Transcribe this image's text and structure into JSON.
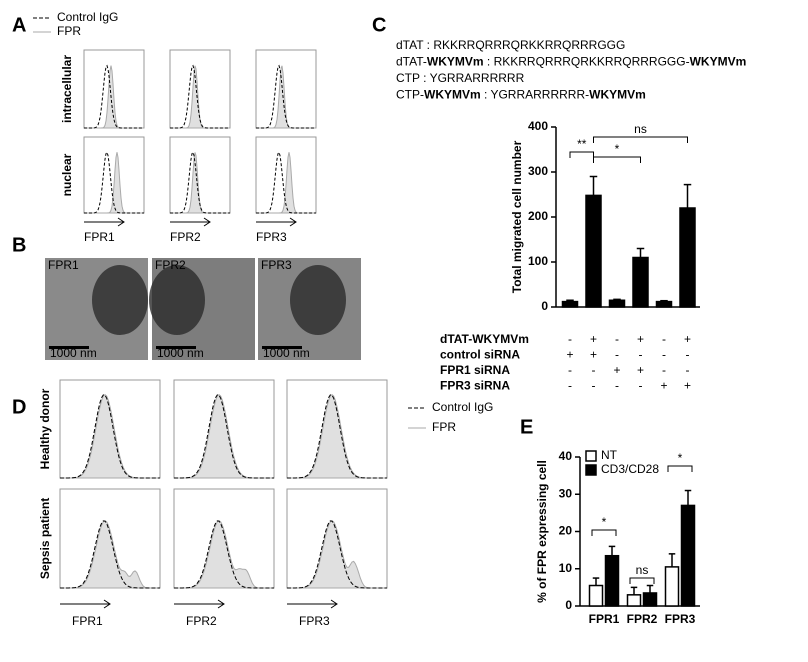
{
  "panels": {
    "a": {
      "label": "A",
      "legend": [
        "Control IgG",
        "FPR"
      ],
      "rows": [
        "intracellular",
        "nuclear"
      ],
      "columns": [
        "FPR1",
        "FPR2",
        "FPR3"
      ]
    },
    "b": {
      "label": "B",
      "images": [
        "FPR1",
        "FPR2",
        "FPR3"
      ],
      "scale_bar": "1000 nm"
    },
    "c": {
      "label": "C",
      "sequences": [
        [
          {
            "text": "dTAT : RKKRRQRRRQRKKRRQRRRGGG",
            "bold": false
          }
        ],
        [
          {
            "text": "dTAT-",
            "bold": false
          },
          {
            "text": "WKYMVm",
            "bold": true
          },
          {
            "text": " : RKKRRQRRRQRKKRRQRRRGGG-",
            "bold": false
          },
          {
            "text": "WKYMVm",
            "bold": true
          }
        ],
        [
          {
            "text": "CTP : YGRRARRRRRR",
            "bold": false
          }
        ],
        [
          {
            "text": "CTP-",
            "bold": false
          },
          {
            "text": "WKYMVm",
            "bold": true
          },
          {
            "text": " : YGRRARRRRRR-",
            "bold": false
          },
          {
            "text": "WKYMVm",
            "bold": true
          }
        ]
      ]
    },
    "d": {
      "label": "D",
      "legend": [
        "Control IgG",
        "FPR"
      ],
      "rows": [
        "Healthy donor",
        "Sepsis patient"
      ],
      "columns": [
        "FPR1",
        "FPR2",
        "FPR3"
      ]
    },
    "e": {
      "label": "E"
    }
  },
  "chart_data": [
    {
      "type": "bar",
      "ylabel": "Total migrated cell number",
      "color": "#000000",
      "values": [
        12,
        248,
        15,
        110,
        12,
        220
      ],
      "errors": [
        3,
        42,
        2,
        20,
        2,
        52
      ],
      "ylim": [
        0,
        400
      ],
      "yticks": [
        0,
        100,
        200,
        300,
        400
      ],
      "annotations": [
        {
          "text": "**",
          "from": 0,
          "to": 1
        },
        {
          "text": "*",
          "from": 1,
          "to": 3
        },
        {
          "text": "ns",
          "from": 1,
          "to": 5
        }
      ],
      "conditions": [
        {
          "name": "dTAT-WKYMVm",
          "signs": [
            "-",
            "+",
            "-",
            "+",
            "-",
            "+"
          ]
        },
        {
          "name": "control siRNA",
          "signs": [
            "+",
            "+",
            "-",
            "-",
            "-",
            "-"
          ]
        },
        {
          "name": "FPR1 siRNA",
          "signs": [
            "-",
            "-",
            "+",
            "+",
            "-",
            "-"
          ]
        },
        {
          "name": "FPR3 siRNA",
          "signs": [
            "-",
            "-",
            "-",
            "-",
            "+",
            "+"
          ]
        }
      ]
    },
    {
      "type": "grouped_bar",
      "ylabel": "% of FPR expressing cell",
      "categories": [
        "FPR1",
        "FPR2",
        "FPR3"
      ],
      "series": [
        {
          "name": "NT",
          "color": "#ffffff",
          "values": [
            5.5,
            3,
            10.5
          ],
          "errors": [
            2,
            2,
            3.5
          ]
        },
        {
          "name": "CD3/CD28",
          "color": "#000000",
          "values": [
            13.5,
            3.5,
            27
          ],
          "errors": [
            2.5,
            2,
            4
          ]
        }
      ],
      "ylim": [
        0,
        40
      ],
      "yticks": [
        0,
        10,
        20,
        30,
        40
      ],
      "annotations": [
        {
          "text": "*",
          "category": 0
        },
        {
          "text": "ns",
          "category": 1
        },
        {
          "text": "*",
          "category": 2
        }
      ]
    }
  ]
}
